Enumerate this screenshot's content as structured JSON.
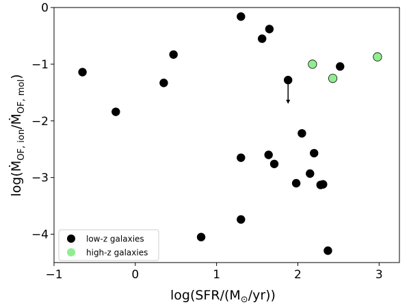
{
  "chart_data": {
    "type": "scatter",
    "xlabel": "log(SFR/(M⊙/yr))",
    "ylabel": "log(ṀOF, ion/ṀOF, mol)",
    "xlim": [
      -1,
      3.25
    ],
    "ylim": [
      -4.5,
      0
    ],
    "x_ticks": [
      -1,
      0,
      1,
      2,
      3
    ],
    "y_ticks": [
      0,
      -1,
      -2,
      -3,
      -4
    ],
    "x_tick_labels": [
      "−1",
      "0",
      "1",
      "2",
      "3"
    ],
    "y_tick_labels": [
      "0",
      "−1",
      "−2",
      "−3",
      "−4"
    ],
    "grid": false,
    "legend_position": "lower-left",
    "series": [
      {
        "name": "low-z galaxies",
        "color": "#000000",
        "points": [
          [
            -0.65,
            -1.14
          ],
          [
            -0.24,
            -1.84
          ],
          [
            0.35,
            -1.33
          ],
          [
            0.47,
            -0.83
          ],
          [
            0.81,
            -4.05
          ],
          [
            1.3,
            -0.16
          ],
          [
            1.3,
            -2.65
          ],
          [
            1.3,
            -3.74
          ],
          [
            1.56,
            -0.55
          ],
          [
            1.65,
            -0.38
          ],
          [
            1.64,
            -2.6
          ],
          [
            1.71,
            -2.76
          ],
          [
            1.88,
            -1.28
          ],
          [
            1.98,
            -3.1
          ],
          [
            2.05,
            -2.22
          ],
          [
            2.15,
            -2.93
          ],
          [
            2.2,
            -2.57
          ],
          [
            2.28,
            -3.13
          ],
          [
            2.31,
            -3.12
          ],
          [
            2.37,
            -4.29
          ],
          [
            2.52,
            -1.04
          ]
        ]
      },
      {
        "name": "high-z galaxies",
        "color": "#90ee90",
        "points": [
          [
            2.18,
            -1.0
          ],
          [
            2.43,
            -1.25
          ],
          [
            2.98,
            -0.87
          ]
        ]
      }
    ],
    "upper_limit_arrow": {
      "x": 1.88,
      "y_from": -1.28,
      "y_to": -1.7
    }
  }
}
